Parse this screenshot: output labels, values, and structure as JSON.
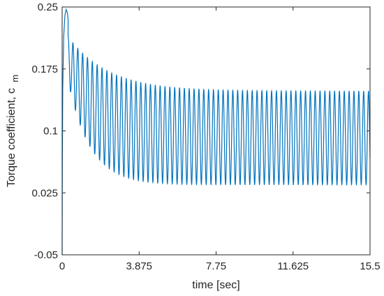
{
  "chart_data": {
    "type": "line",
    "title": "",
    "xlabel": "time [sec]",
    "ylabel": {
      "text": "Torque coefficient, c",
      "subscript": "m"
    },
    "xlim": [
      0,
      15.5
    ],
    "ylim": [
      -0.05,
      0.25
    ],
    "xticks": [
      "0",
      "3.875",
      "7.75",
      "11.625",
      "15.5"
    ],
    "yticks": [
      "-0.05",
      "0.025",
      "0.1",
      "0.175",
      "0.25"
    ],
    "grid": false,
    "line_color": "#0072BD",
    "series": [
      {
        "description_free": true,
        "oscillation_frequency_hz": 4.1,
        "start_value": -0.05,
        "peak_value": 0.247,
        "peak_time": 0.2,
        "upper_envelope": {
          "final": 0.148,
          "initial": 0.225,
          "decay_time_constant": 2.0
        },
        "lower_envelope": {
          "final": 0.035,
          "initial": 0.2,
          "decay_time_constant": 1.1
        },
        "sample_points": [
          {
            "x": 0.0,
            "y": -0.05
          },
          {
            "x": 0.05,
            "y": 0.18
          },
          {
            "x": 0.2,
            "y": 0.247
          },
          {
            "x": 1.0,
            "y": 0.18
          },
          {
            "x": 2.0,
            "y": 0.168
          },
          {
            "x": 4.0,
            "y": 0.156
          },
          {
            "x": 8.0,
            "y": 0.149
          },
          {
            "x": 15.5,
            "y": 0.148
          }
        ]
      }
    ]
  }
}
